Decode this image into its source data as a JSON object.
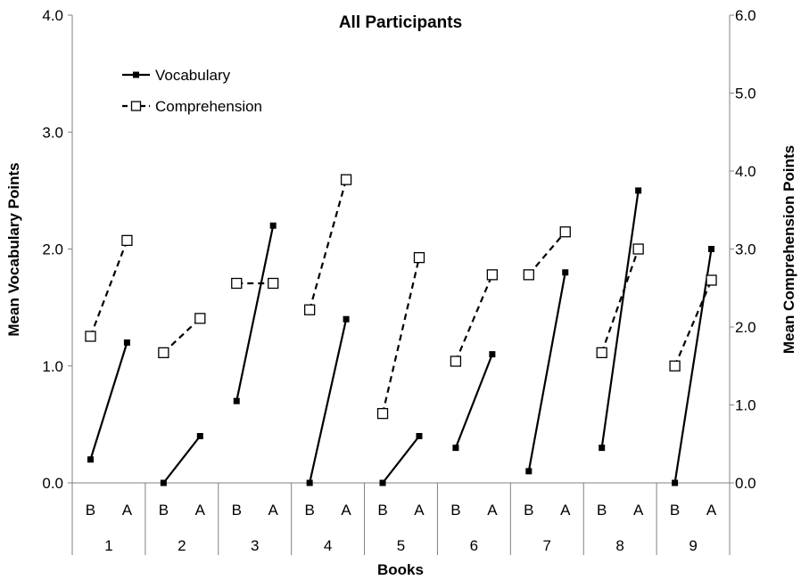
{
  "chart_data": {
    "type": "line",
    "title": "All Participants",
    "xlabel": "Books",
    "ylabel_left": "Mean Vocabulary Points",
    "ylabel_right": "Mean Comprehension Points",
    "y_left": {
      "min": 0,
      "max": 4,
      "ticks": [
        "0.0",
        "1.0",
        "2.0",
        "3.0",
        "4.0"
      ]
    },
    "y_right": {
      "min": 0,
      "max": 6,
      "ticks": [
        "0.0",
        "1.0",
        "2.0",
        "3.0",
        "4.0",
        "5.0",
        "6.0"
      ]
    },
    "grid": false,
    "legend_position": "top-left",
    "books": [
      "1",
      "2",
      "3",
      "4",
      "5",
      "6",
      "7",
      "8",
      "9"
    ],
    "conditions": [
      "B",
      "A"
    ],
    "series": [
      {
        "name": "Vocabulary",
        "axis": "left",
        "style": "solid",
        "marker": "filled-square",
        "values": [
          [
            0.2,
            1.2
          ],
          [
            0.0,
            0.4
          ],
          [
            0.7,
            2.2
          ],
          [
            0.0,
            1.4
          ],
          [
            0.0,
            0.4
          ],
          [
            0.3,
            1.1
          ],
          [
            0.1,
            1.8
          ],
          [
            0.3,
            2.5
          ],
          [
            0.0,
            2.0
          ]
        ]
      },
      {
        "name": "Comprehension",
        "axis": "right",
        "style": "dashed",
        "marker": "open-square",
        "values": [
          [
            1.88,
            3.11
          ],
          [
            1.67,
            2.11
          ],
          [
            2.56,
            2.56
          ],
          [
            2.22,
            3.89
          ],
          [
            0.89,
            2.89
          ],
          [
            1.56,
            2.67
          ],
          [
            2.67,
            3.22
          ],
          [
            1.67,
            3.0
          ],
          [
            1.5,
            2.6
          ]
        ]
      }
    ],
    "colors": {
      "line": "#000000",
      "axis": "#808080",
      "marker_fill_open": "#ffffff"
    }
  }
}
